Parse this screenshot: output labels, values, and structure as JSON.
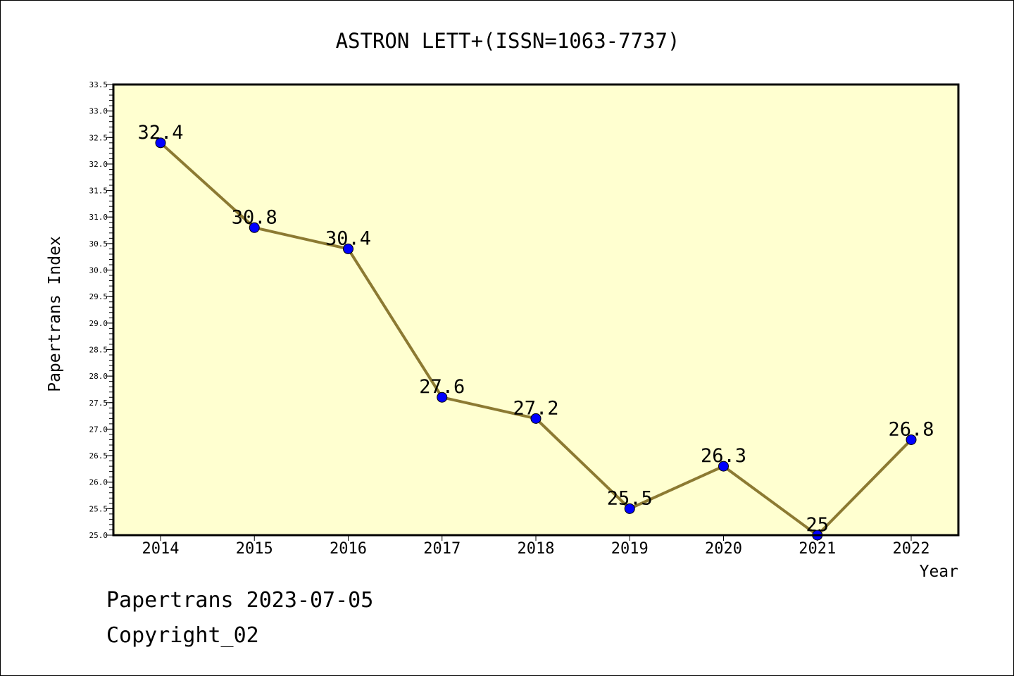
{
  "chart_data": {
    "type": "line",
    "title": "ASTRON LETT+(ISSN=1063-7737)",
    "xlabel": "Year",
    "ylabel": "Papertrans Index",
    "categories": [
      "2014",
      "2015",
      "2016",
      "2017",
      "2018",
      "2019",
      "2020",
      "2021",
      "2022"
    ],
    "series": [
      {
        "values": [
          32.4,
          30.8,
          30.4,
          27.6,
          27.2,
          25.5,
          26.3,
          25.0,
          26.8
        ],
        "point_labels": [
          "32.4",
          "30.8",
          "30.4",
          "27.6",
          "27.2",
          "25.5",
          "26.3",
          "25",
          "26.8"
        ]
      }
    ],
    "ylim": [
      25.0,
      33.5
    ],
    "y_ticks": [
      "25.0",
      "25.5",
      "26.0",
      "26.5",
      "27.0",
      "27.5",
      "28.0",
      "28.5",
      "29.0",
      "29.5",
      "30.0",
      "30.5",
      "31.0",
      "31.5",
      "32.0",
      "32.5",
      "33.0",
      "33.5"
    ],
    "grid": false,
    "legend": "none",
    "colors": {
      "plot_background": "#ffffd0",
      "line": "#8c7a32",
      "marker": "#0000ff",
      "axis": "#000000"
    }
  },
  "footer": {
    "line1": "Papertrans 2023-07-05",
    "line2": "Copyright_02"
  }
}
